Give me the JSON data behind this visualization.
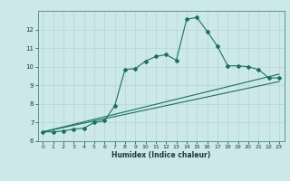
{
  "title": "",
  "xlabel": "Humidex (Indice chaleur)",
  "bg_color": "#cce8e8",
  "grid_color": "#b8d8d8",
  "line_color": "#1a7060",
  "xlim": [
    -0.5,
    23.5
  ],
  "ylim": [
    6,
    13
  ],
  "yticks": [
    6,
    7,
    8,
    9,
    10,
    11,
    12
  ],
  "xticks": [
    0,
    1,
    2,
    3,
    4,
    5,
    6,
    7,
    8,
    9,
    10,
    11,
    12,
    13,
    14,
    15,
    16,
    17,
    18,
    19,
    20,
    21,
    22,
    23
  ],
  "main_x": [
    0,
    1,
    2,
    3,
    4,
    5,
    6,
    7,
    8,
    9,
    10,
    11,
    12,
    13,
    14,
    15,
    16,
    17,
    18,
    19,
    20,
    21,
    22,
    23
  ],
  "main_y": [
    6.5,
    6.5,
    6.55,
    6.65,
    6.7,
    7.0,
    7.1,
    7.9,
    9.85,
    9.9,
    10.3,
    10.55,
    10.65,
    10.35,
    12.55,
    12.65,
    11.9,
    11.1,
    10.05,
    10.05,
    10.0,
    9.85,
    9.4,
    9.4
  ],
  "line2_x": [
    0,
    23
  ],
  "line2_y": [
    6.5,
    9.2
  ],
  "line3_x": [
    0,
    23
  ],
  "line3_y": [
    6.5,
    9.6
  ]
}
